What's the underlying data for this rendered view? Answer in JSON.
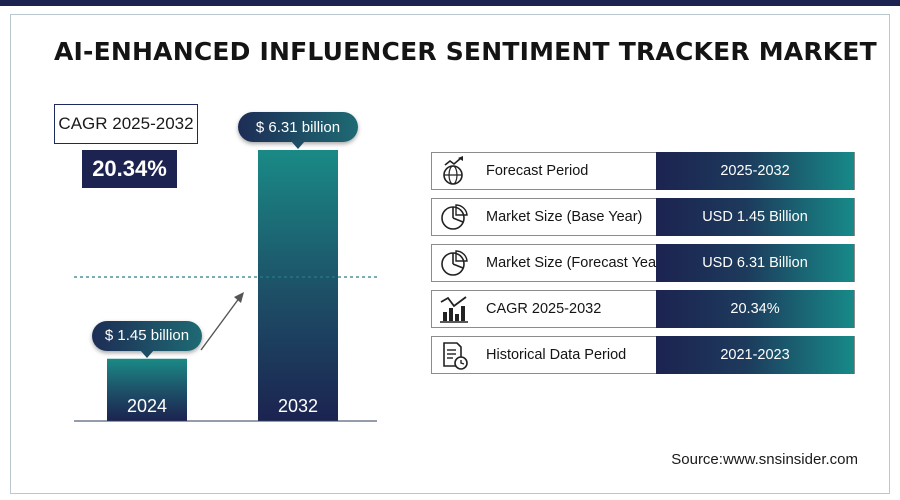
{
  "title": "AI-ENHANCED INFLUENCER SENTIMENT TRACKER MARKET",
  "cagr": {
    "label": "CAGR 2025-2032",
    "value": "20.34%"
  },
  "chart_data": {
    "type": "bar",
    "categories": [
      "2024",
      "2032"
    ],
    "values": [
      1.45,
      6.31
    ],
    "value_labels": [
      "$ 1.45 billion",
      "$ 6.31 billion"
    ],
    "unit": "USD billion",
    "grid": false
  },
  "info_table": [
    {
      "icon": "globe-chart-icon",
      "label": "Forecast Period",
      "value": "2025-2032"
    },
    {
      "icon": "pie-chart-icon",
      "label": "Market Size (Base Year)",
      "value": "USD 1.45 Billion"
    },
    {
      "icon": "pie-chart-icon",
      "label": "Market Size (Forecast Year)",
      "value": "USD 6.31 Billion"
    },
    {
      "icon": "growth-chart-icon",
      "label": "CAGR 2025-2032",
      "value": "20.34%"
    },
    {
      "icon": "report-clock-icon",
      "label": "Historical Data Period",
      "value": "2021-2023"
    }
  ],
  "source": "Source:www.snsinsider.com",
  "colors": {
    "navy": "#1c2350",
    "teal": "#178a88"
  }
}
